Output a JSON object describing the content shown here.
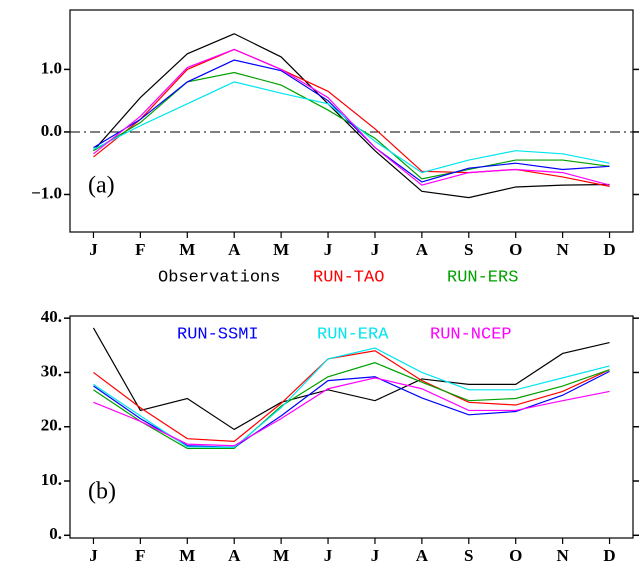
{
  "chart_data": [
    {
      "type": "line",
      "annotation": "(a)",
      "categories": [
        "J",
        "F",
        "M",
        "A",
        "M",
        "J",
        "J",
        "A",
        "S",
        "O",
        "N",
        "D"
      ],
      "ylim": [
        -1.6,
        1.95
      ],
      "yticks": [
        {
          "value": -1.0,
          "label": "−1.0"
        },
        {
          "value": 0.0,
          "label": "0.0"
        },
        {
          "value": 1.0,
          "label": "1.0"
        }
      ],
      "reference_line": 0,
      "reference_line_style": "dashdot",
      "series": [
        {
          "name": "Observations",
          "color": "#000000",
          "values": [
            -0.3,
            0.55,
            1.25,
            1.57,
            1.2,
            0.45,
            -0.3,
            -0.95,
            -1.05,
            -0.88,
            -0.85,
            -0.84
          ]
        },
        {
          "name": "RUN-TAO",
          "color": "#ff0000",
          "values": [
            -0.4,
            0.2,
            1.0,
            1.32,
            1.0,
            0.65,
            0.05,
            -0.63,
            -0.65,
            -0.6,
            -0.72,
            -0.87
          ]
        },
        {
          "name": "RUN-ERS",
          "color": "#00a000",
          "values": [
            -0.3,
            0.15,
            0.8,
            0.95,
            0.75,
            0.35,
            -0.1,
            -0.75,
            -0.6,
            -0.45,
            -0.45,
            -0.55
          ]
        },
        {
          "name": "RUN-SSMI",
          "color": "#0000ff",
          "values": [
            -0.25,
            0.2,
            0.8,
            1.15,
            0.98,
            0.5,
            -0.25,
            -0.8,
            -0.58,
            -0.5,
            -0.6,
            -0.55
          ]
        },
        {
          "name": "RUN-ERA",
          "color": "#00e5ee",
          "values": [
            -0.28,
            0.1,
            0.45,
            0.8,
            0.62,
            0.45,
            -0.15,
            -0.65,
            -0.45,
            -0.3,
            -0.35,
            -0.5
          ]
        },
        {
          "name": "RUN-NCEP",
          "color": "#ff00ff",
          "values": [
            -0.35,
            0.25,
            1.03,
            1.32,
            1.0,
            0.55,
            -0.25,
            -0.85,
            -0.65,
            -0.6,
            -0.65,
            -0.85
          ]
        }
      ]
    },
    {
      "type": "line",
      "annotation": "(b)",
      "categories": [
        "J",
        "F",
        "M",
        "A",
        "M",
        "J",
        "J",
        "A",
        "S",
        "O",
        "N",
        "D"
      ],
      "ylim": [
        -0.5,
        40.4
      ],
      "yticks": [
        {
          "value": 0,
          "label": "0."
        },
        {
          "value": 10,
          "label": "10."
        },
        {
          "value": 20,
          "label": "20."
        },
        {
          "value": 30,
          "label": "30."
        },
        {
          "value": 40,
          "label": "40."
        }
      ],
      "series": [
        {
          "values": [
            38.2,
            23,
            25.2,
            19.5,
            24.5,
            26.8,
            24.8,
            28.8,
            27.8,
            27.8,
            33.5,
            35.5
          ]
        },
        {
          "values": [
            30,
            23.5,
            17.8,
            17.3,
            24.3,
            32.5,
            34,
            28.5,
            24.5,
            24,
            26.5,
            30.5
          ]
        },
        {
          "values": [
            26.8,
            21,
            16,
            16,
            23.8,
            29.2,
            31.8,
            28.2,
            24.8,
            25.2,
            27.5,
            30.5
          ]
        },
        {
          "values": [
            27.5,
            21.5,
            16.5,
            16.2,
            22,
            28.5,
            29.2,
            25.3,
            22.2,
            22.8,
            25.8,
            30.2
          ]
        },
        {
          "values": [
            27.8,
            22,
            16.3,
            16.2,
            23.5,
            32.5,
            34.5,
            30,
            26.8,
            26.8,
            29,
            31.2
          ]
        },
        {
          "values": [
            24.5,
            21,
            16.8,
            16.5,
            21.5,
            27,
            29,
            27,
            23,
            23,
            24.8,
            26.5
          ]
        }
      ]
    }
  ]
}
